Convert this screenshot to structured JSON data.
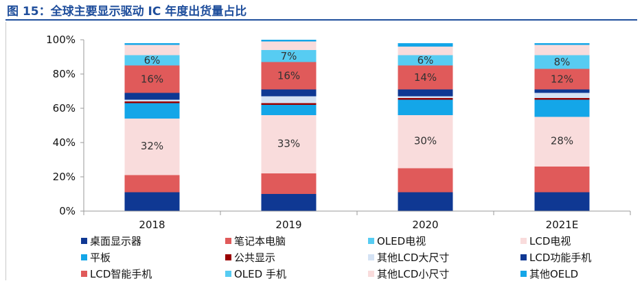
{
  "figure_title": "图 15：全球主要显示驱动 IC 年度出货量占比",
  "colors": {
    "title": "#1f4e9c",
    "axis_text": "#111111",
    "segment_label": "#333333"
  },
  "chart_data": {
    "type": "bar",
    "stacked": true,
    "title": "",
    "xlabel": "",
    "ylabel": "",
    "ylim": [
      0,
      100
    ],
    "yticks": [
      "0%",
      "20%",
      "40%",
      "60%",
      "80%",
      "100%"
    ],
    "grid": false,
    "legend_position": "bottom",
    "categories": [
      "2018",
      "2019",
      "2020",
      "2021E"
    ],
    "series": [
      {
        "name": "桌面显示器",
        "color": "#0f3893",
        "values": [
          11,
          10,
          11,
          11
        ]
      },
      {
        "name": "笔记本电脑",
        "color": "#e05a5a",
        "values": [
          10,
          12,
          14,
          15
        ]
      },
      {
        "name": "其他LCD小尺寸",
        "color": "#f9dcdc",
        "values": [
          1,
          1,
          1,
          1
        ],
        "hide_in_legend": true
      },
      {
        "name": "LCD电视",
        "color": "#f9dcdc",
        "values": [
          32,
          33,
          30,
          28
        ],
        "labels": [
          "32%",
          "33%",
          "30%",
          "28%"
        ],
        "hide_in_legend": true
      },
      {
        "name": "平板",
        "color": "#14a6e8",
        "values": [
          9,
          6,
          9,
          10
        ]
      },
      {
        "name": "公共显示",
        "color": "#9a0000",
        "values": [
          1,
          1,
          1,
          1
        ]
      },
      {
        "name": "其他LCD大尺寸",
        "color": "#d4e2f4",
        "values": [
          1,
          4,
          1,
          3
        ]
      },
      {
        "name": "LCD功能手机",
        "color": "#0f3893",
        "values": [
          4,
          4,
          4,
          2
        ]
      },
      {
        "name": "LCD智能手机",
        "color": "#e05a5a",
        "values": [
          16,
          16,
          14,
          12
        ],
        "labels": [
          "16%",
          "16%",
          "14%",
          "12%"
        ]
      },
      {
        "name": "OLED 手机",
        "color": "#57ccf2",
        "values": [
          6,
          7,
          6,
          8
        ],
        "labels": [
          "6%",
          "7%",
          "6%",
          "8%"
        ]
      },
      {
        "name": "其他LCD小尺寸",
        "color": "#f9dcdc",
        "values": [
          6,
          5,
          5,
          6
        ],
        "hide_in_legend": true
      },
      {
        "name": "其他OELD",
        "color": "#14a6e8",
        "values": [
          1,
          1,
          2,
          1
        ],
        "hide_in_legend": true
      }
    ],
    "legend": [
      {
        "label": "桌面显示器",
        "color": "#0f3893"
      },
      {
        "label": "笔记本电脑",
        "color": "#e05a5a"
      },
      {
        "label": "OLED电视",
        "color": "#57ccf2"
      },
      {
        "label": "LCD电视",
        "color": "#f9dcdc"
      },
      {
        "label": "平板",
        "color": "#14a6e8"
      },
      {
        "label": "公共显示",
        "color": "#9a0000"
      },
      {
        "label": "其他LCD大尺寸",
        "color": "#d4e2f4"
      },
      {
        "label": "LCD功能手机",
        "color": "#0f3893"
      },
      {
        "label": "LCD智能手机",
        "color": "#e05a5a"
      },
      {
        "label": "OLED 手机",
        "color": "#57ccf2"
      },
      {
        "label": "其他LCD小尺寸",
        "color": "#f9dcdc"
      },
      {
        "label": "其他OELD",
        "color": "#14a6e8"
      }
    ]
  }
}
